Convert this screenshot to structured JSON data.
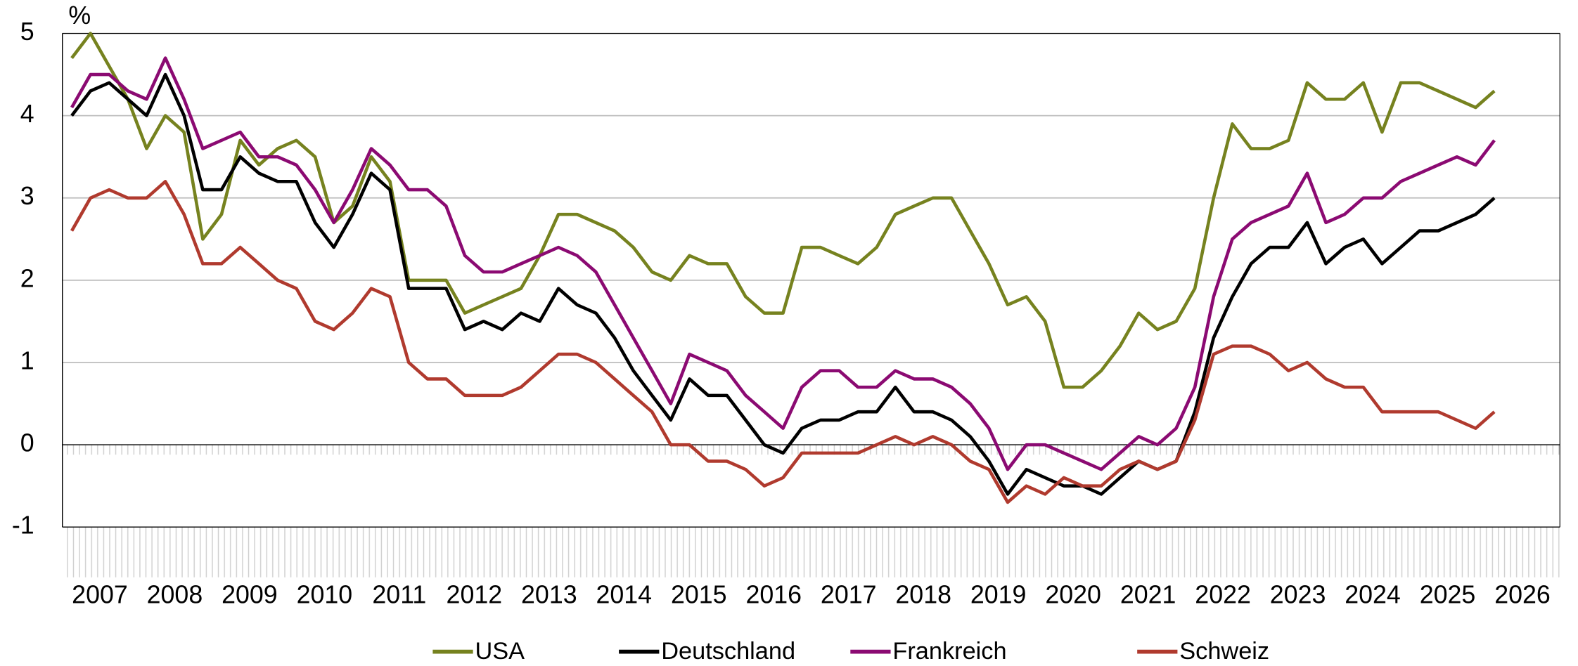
{
  "chart_data": {
    "type": "line",
    "y_label": "%",
    "categories": [
      null,
      "2007",
      null,
      null,
      null,
      "2008",
      null,
      null,
      null,
      "2009",
      null,
      null,
      null,
      "2010",
      null,
      null,
      null,
      "2011",
      null,
      null,
      null,
      "2012",
      null,
      null,
      null,
      "2013",
      null,
      null,
      null,
      "2014",
      null,
      null,
      null,
      "2015",
      null,
      null,
      null,
      "2016",
      null,
      null,
      null,
      "2017",
      null,
      null,
      null,
      "2018",
      null,
      null,
      null,
      "2019",
      null,
      null,
      null,
      "2020",
      null,
      null,
      null,
      "2021",
      null,
      null,
      null,
      "2022",
      null,
      null,
      null,
      "2023",
      null,
      null,
      null,
      "2024",
      null,
      null,
      null,
      "2025",
      null,
      null,
      null,
      "2026",
      null,
      null
    ],
    "series": [
      {
        "name": "USA",
        "color": "#76821f",
        "values": [
          4.7,
          5.0,
          4.6,
          4.2,
          3.6,
          4.0,
          3.8,
          2.5,
          2.8,
          3.7,
          3.4,
          3.6,
          3.7,
          3.5,
          2.7,
          2.9,
          3.5,
          3.2,
          2.0,
          2.0,
          2.0,
          1.6,
          1.7,
          1.8,
          1.9,
          2.3,
          2.8,
          2.8,
          2.7,
          2.6,
          2.4,
          2.1,
          2.0,
          2.3,
          2.2,
          2.2,
          1.8,
          1.6,
          1.6,
          2.4,
          2.4,
          2.3,
          2.2,
          2.4,
          2.8,
          2.9,
          3.0,
          3.0,
          2.6,
          2.2,
          1.7,
          1.8,
          1.5,
          0.7,
          0.7,
          0.9,
          1.2,
          1.6,
          1.4,
          1.5,
          1.9,
          3.0,
          3.9,
          3.6,
          3.6,
          3.7,
          4.4,
          4.2,
          4.2,
          4.4,
          3.8,
          4.4,
          4.4,
          4.3,
          4.2,
          4.1,
          4.3,
          null,
          null,
          null
        ]
      },
      {
        "name": "Deutschland",
        "color": "#000000",
        "values": [
          4.0,
          4.3,
          4.4,
          4.2,
          4.0,
          4.5,
          4.0,
          3.1,
          3.1,
          3.5,
          3.3,
          3.2,
          3.2,
          2.7,
          2.4,
          2.8,
          3.3,
          3.1,
          1.9,
          1.9,
          1.9,
          1.4,
          1.5,
          1.4,
          1.6,
          1.5,
          1.9,
          1.7,
          1.6,
          1.3,
          0.9,
          0.6,
          0.3,
          0.8,
          0.6,
          0.6,
          0.3,
          0.0,
          -0.1,
          0.2,
          0.3,
          0.3,
          0.4,
          0.4,
          0.7,
          0.4,
          0.4,
          0.3,
          0.1,
          -0.2,
          -0.6,
          -0.3,
          -0.4,
          -0.5,
          -0.5,
          -0.6,
          -0.4,
          -0.2,
          -0.3,
          -0.2,
          0.4,
          1.3,
          1.8,
          2.2,
          2.4,
          2.4,
          2.7,
          2.2,
          2.4,
          2.5,
          2.2,
          2.4,
          2.6,
          2.6,
          2.7,
          2.8,
          3.0,
          null,
          null,
          null
        ]
      },
      {
        "name": "Frankreich",
        "color": "#8b0a72",
        "values": [
          4.1,
          4.5,
          4.5,
          4.3,
          4.2,
          4.7,
          4.2,
          3.6,
          3.7,
          3.8,
          3.5,
          3.5,
          3.4,
          3.1,
          2.7,
          3.1,
          3.6,
          3.4,
          3.1,
          3.1,
          2.9,
          2.3,
          2.1,
          2.1,
          2.2,
          2.3,
          2.4,
          2.3,
          2.1,
          1.7,
          1.3,
          0.9,
          0.5,
          1.1,
          1.0,
          0.9,
          0.6,
          0.4,
          0.2,
          0.7,
          0.9,
          0.9,
          0.7,
          0.7,
          0.9,
          0.8,
          0.8,
          0.7,
          0.5,
          0.2,
          -0.3,
          0.0,
          0.0,
          -0.1,
          -0.2,
          -0.3,
          -0.1,
          0.1,
          0.0,
          0.2,
          0.7,
          1.8,
          2.5,
          2.7,
          2.8,
          2.9,
          3.3,
          2.7,
          2.8,
          3.0,
          3.0,
          3.2,
          3.3,
          3.4,
          3.5,
          3.4,
          3.7,
          null,
          null,
          null
        ]
      },
      {
        "name": "Schweiz",
        "color": "#b03a2e",
        "values": [
          2.6,
          3.0,
          3.1,
          3.0,
          3.0,
          3.2,
          2.8,
          2.2,
          2.2,
          2.4,
          2.2,
          2.0,
          1.9,
          1.5,
          1.4,
          1.6,
          1.9,
          1.8,
          1.0,
          0.8,
          0.8,
          0.6,
          0.6,
          0.6,
          0.7,
          0.9,
          1.1,
          1.1,
          1.0,
          0.8,
          0.6,
          0.4,
          0.0,
          0.0,
          -0.2,
          -0.2,
          -0.3,
          -0.5,
          -0.4,
          -0.1,
          -0.1,
          -0.1,
          -0.1,
          0.0,
          0.1,
          0.0,
          0.1,
          0.0,
          -0.2,
          -0.3,
          -0.7,
          -0.5,
          -0.6,
          -0.4,
          -0.5,
          -0.5,
          -0.3,
          -0.2,
          -0.3,
          -0.2,
          0.3,
          1.1,
          1.2,
          1.2,
          1.1,
          0.9,
          1.0,
          0.8,
          0.7,
          0.7,
          0.4,
          0.4,
          0.4,
          0.4,
          0.3,
          0.2,
          0.4,
          null,
          null,
          null
        ]
      }
    ],
    "ylim": [
      -1,
      5
    ],
    "yticks": [
      -1,
      0,
      1,
      2,
      3,
      4,
      5
    ],
    "grid": true,
    "legend": "bottom"
  }
}
